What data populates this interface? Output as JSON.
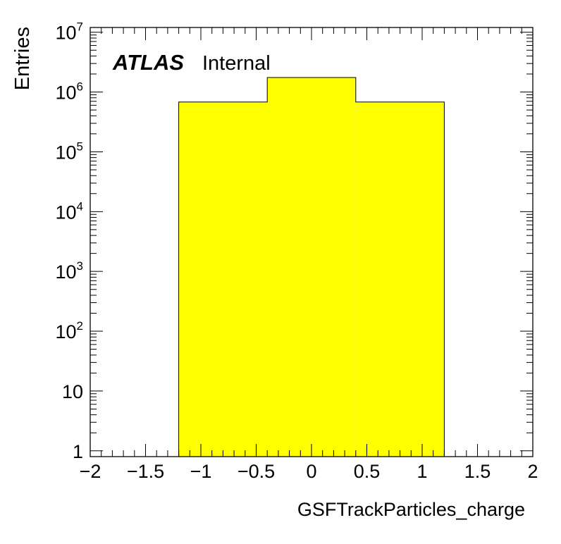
{
  "chart_data": {
    "type": "bar",
    "bins": [
      {
        "x_low": -1.2,
        "x_high": -0.4,
        "value": 680000
      },
      {
        "x_low": -0.4,
        "x_high": 0.4,
        "value": 1750000
      },
      {
        "x_low": 0.4,
        "x_high": 1.2,
        "value": 680000
      }
    ],
    "xlabel": "GSFTrackParticles_charge",
    "ylabel": "Entries",
    "xlim": [
      -2,
      2
    ],
    "ylim": [
      0.8,
      12000000
    ],
    "y_scale": "log",
    "x_ticks": [
      {
        "value": -2,
        "label": "−2"
      },
      {
        "value": -1.5,
        "label": "−1.5"
      },
      {
        "value": -1,
        "label": "−1"
      },
      {
        "value": -0.5,
        "label": "−0.5"
      },
      {
        "value": 0,
        "label": "0"
      },
      {
        "value": 0.5,
        "label": "0.5"
      },
      {
        "value": 1,
        "label": "1"
      },
      {
        "value": 1.5,
        "label": "1.5"
      },
      {
        "value": 2,
        "label": "2"
      }
    ],
    "y_ticks": [
      {
        "value": 1,
        "base": "1",
        "exp": ""
      },
      {
        "value": 10,
        "base": "10",
        "exp": ""
      },
      {
        "value": 100,
        "base": "10",
        "exp": "2"
      },
      {
        "value": 1000,
        "base": "10",
        "exp": "3"
      },
      {
        "value": 10000,
        "base": "10",
        "exp": "4"
      },
      {
        "value": 100000,
        "base": "10",
        "exp": "5"
      },
      {
        "value": 1000000,
        "base": "10",
        "exp": "6"
      },
      {
        "value": 10000000,
        "base": "10",
        "exp": "7"
      }
    ],
    "grid": false,
    "fill_color": "#ffff00",
    "line_color": "#000000",
    "label_atlas": "ATLAS",
    "label_status": "Internal"
  }
}
